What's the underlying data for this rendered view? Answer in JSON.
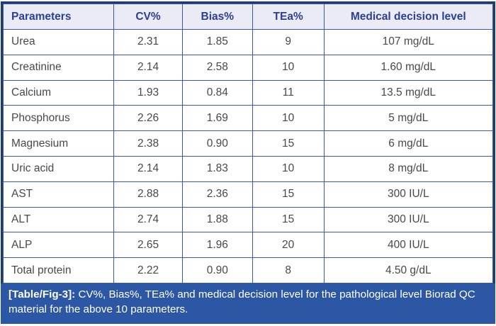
{
  "table": {
    "columns": [
      "Parameters",
      "CV%",
      "Bias%",
      "TEa%",
      "Medical decision level"
    ],
    "rows": [
      [
        "Urea",
        "2.31",
        "1.85",
        "9",
        "107 mg/dL"
      ],
      [
        "Creatinine",
        "2.14",
        "2.58",
        "10",
        "1.60 mg/dL"
      ],
      [
        "Calcium",
        "1.93",
        "0.84",
        "11",
        "13.5 mg/dL"
      ],
      [
        "Phosphorus",
        "2.26",
        "1.69",
        "10",
        "5 mg/dL"
      ],
      [
        "Magnesium",
        "2.38",
        "0.90",
        "15",
        "6 mg/dL"
      ],
      [
        "Uric acid",
        "2.14",
        "1.83",
        "10",
        "8 mg/dL"
      ],
      [
        "AST",
        "2.88",
        "2.36",
        "15",
        "300 IU/L"
      ],
      [
        "ALT",
        "2.74",
        "1.88",
        "15",
        "300 IU/L"
      ],
      [
        "ALP",
        "2.65",
        "1.96",
        "20",
        "400 IU/L"
      ],
      [
        "Total protein",
        "2.22",
        "0.90",
        "8",
        "4.50 g/dL"
      ]
    ]
  },
  "chart_data": {
    "type": "table",
    "title": "[Table/Fig-3]",
    "columns": [
      "Parameters",
      "CV%",
      "Bias%",
      "TEa%",
      "Medical decision level"
    ],
    "rows": [
      [
        "Urea",
        2.31,
        1.85,
        9,
        "107 mg/dL"
      ],
      [
        "Creatinine",
        2.14,
        2.58,
        10,
        "1.60 mg/dL"
      ],
      [
        "Calcium",
        1.93,
        0.84,
        11,
        "13.5 mg/dL"
      ],
      [
        "Phosphorus",
        2.26,
        1.69,
        10,
        "5 mg/dL"
      ],
      [
        "Magnesium",
        2.38,
        0.9,
        15,
        "6 mg/dL"
      ],
      [
        "Uric acid",
        2.14,
        1.83,
        10,
        "8 mg/dL"
      ],
      [
        "AST",
        2.88,
        2.36,
        15,
        "300 IU/L"
      ],
      [
        "ALT",
        2.74,
        1.88,
        15,
        "300 IU/L"
      ],
      [
        "ALP",
        2.65,
        1.96,
        20,
        "400 IU/L"
      ],
      [
        "Total protein",
        2.22,
        0.9,
        8,
        "4.50 g/dL"
      ]
    ]
  },
  "caption": {
    "label": "[Table/Fig-3]:",
    "text": "CV%, Bias%, TEa% and medical decision level for the pathological level Biorad QC material for the above 10 parameters."
  },
  "colors": {
    "outer_border": "#1e3b74",
    "grid_line": "#3b59a8",
    "header_bg": "#eaebf4",
    "header_text": "#2c3f94",
    "body_text": "#48484a",
    "caption_bg": "#2b57a5",
    "caption_text": "#ffffff"
  }
}
